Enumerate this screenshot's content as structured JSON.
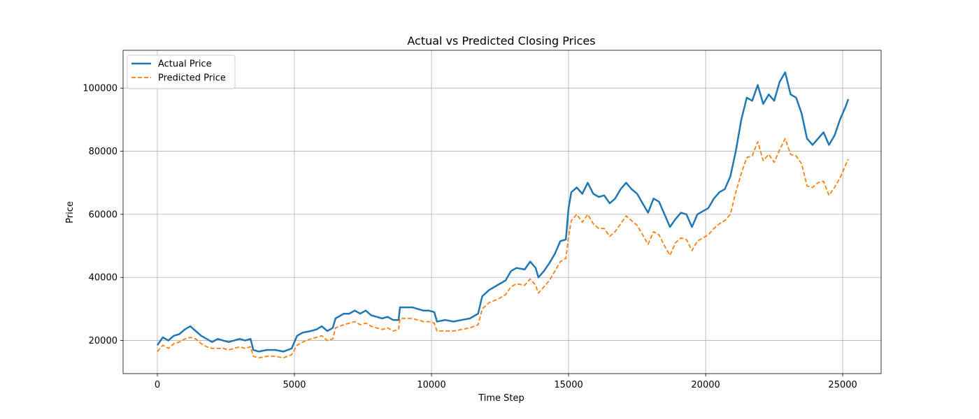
{
  "chart_data": {
    "type": "line",
    "title": "Actual vs Predicted Closing Prices",
    "xlabel": "Time Step",
    "ylabel": "Price",
    "xlim": [
      -1250,
      26400
    ],
    "ylim": [
      9500,
      112000
    ],
    "x_ticks": [
      0,
      5000,
      10000,
      15000,
      20000,
      25000
    ],
    "y_ticks": [
      20000,
      40000,
      60000,
      80000,
      100000
    ],
    "grid": true,
    "legend_position": "top-left",
    "series": [
      {
        "name": "Actual Price",
        "color": "#1f77b4",
        "style": "solid",
        "points": [
          [
            0,
            18500
          ],
          [
            200,
            21000
          ],
          [
            400,
            20000
          ],
          [
            600,
            21500
          ],
          [
            800,
            22000
          ],
          [
            1000,
            23500
          ],
          [
            1200,
            24500
          ],
          [
            1400,
            23000
          ],
          [
            1600,
            21500
          ],
          [
            1800,
            20500
          ],
          [
            2000,
            19500
          ],
          [
            2200,
            20500
          ],
          [
            2400,
            20000
          ],
          [
            2600,
            19500
          ],
          [
            2800,
            20000
          ],
          [
            3000,
            20500
          ],
          [
            3200,
            20000
          ],
          [
            3400,
            20500
          ],
          [
            3500,
            17000
          ],
          [
            3700,
            16500
          ],
          [
            4000,
            17000
          ],
          [
            4300,
            17000
          ],
          [
            4600,
            16500
          ],
          [
            4900,
            17500
          ],
          [
            5100,
            21500
          ],
          [
            5300,
            22500
          ],
          [
            5600,
            23000
          ],
          [
            5800,
            23500
          ],
          [
            6000,
            24500
          ],
          [
            6200,
            23000
          ],
          [
            6400,
            24000
          ],
          [
            6500,
            27000
          ],
          [
            6800,
            28500
          ],
          [
            7000,
            28500
          ],
          [
            7200,
            29500
          ],
          [
            7400,
            28500
          ],
          [
            7600,
            29500
          ],
          [
            7800,
            28000
          ],
          [
            8000,
            27500
          ],
          [
            8200,
            27000
          ],
          [
            8400,
            27500
          ],
          [
            8600,
            26500
          ],
          [
            8800,
            26500
          ],
          [
            8850,
            30500
          ],
          [
            9100,
            30500
          ],
          [
            9300,
            30500
          ],
          [
            9500,
            30000
          ],
          [
            9700,
            29500
          ],
          [
            9900,
            29500
          ],
          [
            10100,
            29000
          ],
          [
            10200,
            26000
          ],
          [
            10500,
            26500
          ],
          [
            10800,
            26000
          ],
          [
            11100,
            26500
          ],
          [
            11400,
            27000
          ],
          [
            11700,
            28500
          ],
          [
            11850,
            34000
          ],
          [
            12100,
            36000
          ],
          [
            12400,
            37500
          ],
          [
            12700,
            39000
          ],
          [
            12900,
            42000
          ],
          [
            13100,
            43000
          ],
          [
            13400,
            42500
          ],
          [
            13600,
            45000
          ],
          [
            13800,
            43000
          ],
          [
            13900,
            40000
          ],
          [
            14100,
            42000
          ],
          [
            14300,
            44500
          ],
          [
            14500,
            47500
          ],
          [
            14700,
            51500
          ],
          [
            14900,
            52000
          ],
          [
            15000,
            62000
          ],
          [
            15100,
            67000
          ],
          [
            15300,
            68500
          ],
          [
            15500,
            66500
          ],
          [
            15700,
            70000
          ],
          [
            15900,
            66500
          ],
          [
            16100,
            65500
          ],
          [
            16300,
            66000
          ],
          [
            16500,
            63500
          ],
          [
            16700,
            65000
          ],
          [
            16900,
            68000
          ],
          [
            17100,
            70000
          ],
          [
            17300,
            68000
          ],
          [
            17500,
            66500
          ],
          [
            17700,
            63500
          ],
          [
            17900,
            60500
          ],
          [
            18100,
            65000
          ],
          [
            18300,
            64000
          ],
          [
            18500,
            60000
          ],
          [
            18700,
            56000
          ],
          [
            18900,
            58500
          ],
          [
            19100,
            60500
          ],
          [
            19300,
            60000
          ],
          [
            19500,
            56000
          ],
          [
            19700,
            60000
          ],
          [
            19900,
            61000
          ],
          [
            20100,
            62000
          ],
          [
            20300,
            65000
          ],
          [
            20500,
            67000
          ],
          [
            20700,
            68000
          ],
          [
            20900,
            72000
          ],
          [
            21100,
            80000
          ],
          [
            21300,
            90000
          ],
          [
            21500,
            97000
          ],
          [
            21700,
            96000
          ],
          [
            21900,
            101000
          ],
          [
            22100,
            95000
          ],
          [
            22300,
            98000
          ],
          [
            22500,
            96000
          ],
          [
            22700,
            102000
          ],
          [
            22900,
            105000
          ],
          [
            23100,
            98000
          ],
          [
            23300,
            97000
          ],
          [
            23500,
            92000
          ],
          [
            23700,
            84000
          ],
          [
            23900,
            82000
          ],
          [
            24100,
            84000
          ],
          [
            24300,
            86000
          ],
          [
            24500,
            82000
          ],
          [
            24700,
            85000
          ],
          [
            24900,
            90000
          ],
          [
            25100,
            94000
          ],
          [
            25200,
            96500
          ]
        ]
      },
      {
        "name": "Predicted Price",
        "color": "#ff7f0e",
        "style": "dashed",
        "points": [
          [
            0,
            16500
          ],
          [
            200,
            18500
          ],
          [
            400,
            17500
          ],
          [
            600,
            19000
          ],
          [
            800,
            19500
          ],
          [
            1000,
            20500
          ],
          [
            1200,
            21000
          ],
          [
            1400,
            20500
          ],
          [
            1600,
            19000
          ],
          [
            1800,
            18000
          ],
          [
            2000,
            17500
          ],
          [
            2200,
            17500
          ],
          [
            2400,
            17500
          ],
          [
            2600,
            17000
          ],
          [
            2800,
            17500
          ],
          [
            3000,
            18000
          ],
          [
            3200,
            17500
          ],
          [
            3400,
            18000
          ],
          [
            3500,
            15000
          ],
          [
            3700,
            14500
          ],
          [
            4000,
            15000
          ],
          [
            4300,
            15000
          ],
          [
            4600,
            14500
          ],
          [
            4900,
            15500
          ],
          [
            5100,
            18500
          ],
          [
            5300,
            19500
          ],
          [
            5600,
            20500
          ],
          [
            5800,
            21000
          ],
          [
            6000,
            21500
          ],
          [
            6200,
            20000
          ],
          [
            6400,
            20500
          ],
          [
            6500,
            24000
          ],
          [
            6800,
            25000
          ],
          [
            7000,
            25500
          ],
          [
            7200,
            26000
          ],
          [
            7400,
            25000
          ],
          [
            7600,
            25500
          ],
          [
            7800,
            24500
          ],
          [
            8000,
            24000
          ],
          [
            8200,
            23500
          ],
          [
            8400,
            24000
          ],
          [
            8600,
            23000
          ],
          [
            8800,
            23500
          ],
          [
            8850,
            27000
          ],
          [
            9100,
            27000
          ],
          [
            9300,
            27000
          ],
          [
            9500,
            26500
          ],
          [
            9700,
            26000
          ],
          [
            9900,
            26000
          ],
          [
            10100,
            25500
          ],
          [
            10200,
            23000
          ],
          [
            10500,
            23000
          ],
          [
            10800,
            23000
          ],
          [
            11100,
            23500
          ],
          [
            11400,
            24000
          ],
          [
            11700,
            25000
          ],
          [
            11850,
            30000
          ],
          [
            12100,
            32000
          ],
          [
            12400,
            33000
          ],
          [
            12700,
            34500
          ],
          [
            12900,
            37000
          ],
          [
            13100,
            38000
          ],
          [
            13400,
            37500
          ],
          [
            13600,
            39500
          ],
          [
            13800,
            37500
          ],
          [
            13900,
            35000
          ],
          [
            14100,
            37000
          ],
          [
            14300,
            39000
          ],
          [
            14500,
            42000
          ],
          [
            14700,
            45000
          ],
          [
            14900,
            46000
          ],
          [
            15000,
            53000
          ],
          [
            15100,
            58000
          ],
          [
            15300,
            60000
          ],
          [
            15500,
            57500
          ],
          [
            15700,
            60000
          ],
          [
            15900,
            57000
          ],
          [
            16100,
            55500
          ],
          [
            16300,
            55500
          ],
          [
            16500,
            53000
          ],
          [
            16700,
            54500
          ],
          [
            16900,
            57000
          ],
          [
            17100,
            59500
          ],
          [
            17300,
            58000
          ],
          [
            17500,
            56500
          ],
          [
            17700,
            53500
          ],
          [
            17900,
            50500
          ],
          [
            18100,
            54500
          ],
          [
            18300,
            53500
          ],
          [
            18500,
            50000
          ],
          [
            18700,
            47000
          ],
          [
            18900,
            51000
          ],
          [
            19100,
            52500
          ],
          [
            19300,
            52000
          ],
          [
            19500,
            48500
          ],
          [
            19700,
            51500
          ],
          [
            19900,
            52500
          ],
          [
            20100,
            53500
          ],
          [
            20300,
            55500
          ],
          [
            20500,
            57000
          ],
          [
            20700,
            58000
          ],
          [
            20900,
            60000
          ],
          [
            21100,
            67000
          ],
          [
            21300,
            73000
          ],
          [
            21500,
            78000
          ],
          [
            21700,
            78500
          ],
          [
            21900,
            83000
          ],
          [
            22100,
            77000
          ],
          [
            22300,
            79000
          ],
          [
            22500,
            76500
          ],
          [
            22700,
            80500
          ],
          [
            22900,
            84000
          ],
          [
            23100,
            79000
          ],
          [
            23300,
            78500
          ],
          [
            23500,
            76000
          ],
          [
            23700,
            69000
          ],
          [
            23900,
            68500
          ],
          [
            24100,
            70000
          ],
          [
            24300,
            70500
          ],
          [
            24500,
            66000
          ],
          [
            24700,
            68500
          ],
          [
            24900,
            71500
          ],
          [
            25100,
            75500
          ],
          [
            25200,
            77500
          ]
        ]
      }
    ]
  }
}
